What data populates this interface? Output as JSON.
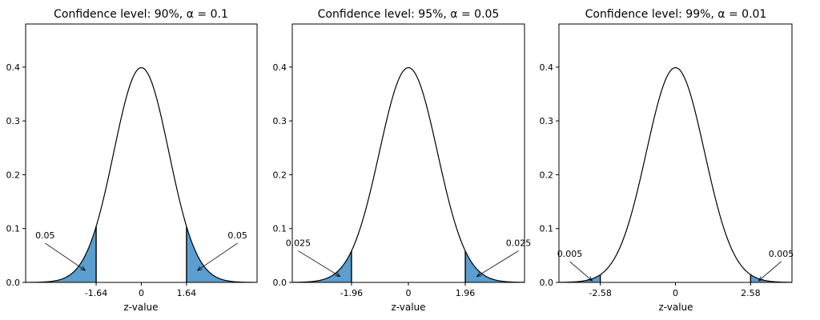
{
  "chart_data": [
    {
      "type": "area",
      "title": "Confidence level: 90%, α = 0.1",
      "xlabel": "z-value",
      "ylabel": "",
      "xlim": [
        -4.2,
        4.2
      ],
      "ylim": [
        0,
        0.48
      ],
      "yticks": [
        "0.0",
        "0.1",
        "0.2",
        "0.3",
        "0.4"
      ],
      "xticks": [
        {
          "value": -1.64,
          "label": "-1.64"
        },
        {
          "value": 0,
          "label": "0"
        },
        {
          "value": 1.64,
          "label": "1.64"
        }
      ],
      "critical_z": 1.64,
      "tail_area": "0.05",
      "grid": false,
      "fill_color": "#5b9ecf"
    },
    {
      "type": "area",
      "title": "Confidence level: 95%, α = 0.05",
      "xlabel": "z-value",
      "ylabel": "",
      "xlim": [
        -4.0,
        4.0
      ],
      "ylim": [
        0,
        0.48
      ],
      "yticks": [
        "0.0",
        "0.1",
        "0.2",
        "0.3",
        "0.4"
      ],
      "xticks": [
        {
          "value": -1.96,
          "label": "-1.96"
        },
        {
          "value": 0,
          "label": "0"
        },
        {
          "value": 1.96,
          "label": "1.96"
        }
      ],
      "critical_z": 1.96,
      "tail_area": "0.025",
      "grid": false,
      "fill_color": "#5b9ecf"
    },
    {
      "type": "area",
      "title": "Confidence level: 99%, α = 0.01",
      "xlabel": "z-value",
      "ylabel": "",
      "xlim": [
        -4.0,
        4.0
      ],
      "ylim": [
        0,
        0.48
      ],
      "yticks": [
        "0.0",
        "0.1",
        "0.2",
        "0.3",
        "0.4"
      ],
      "xticks": [
        {
          "value": -2.58,
          "label": "-2.58"
        },
        {
          "value": 0,
          "label": "0"
        },
        {
          "value": 2.58,
          "label": "2.58"
        }
      ],
      "critical_z": 2.58,
      "tail_area": "0.005",
      "grid": false,
      "fill_color": "#5b9ecf"
    }
  ]
}
